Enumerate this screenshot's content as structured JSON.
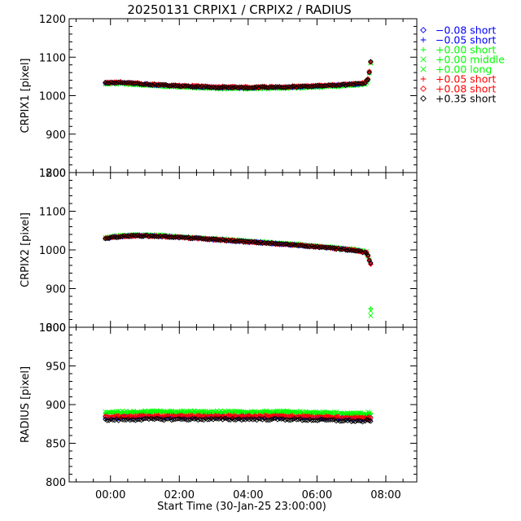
{
  "chart_data": {
    "type": "scatter",
    "title": "20250131 CRPIX1 / CRPIX2 / RADIUS",
    "xlabel": "Start Time (30-Jan-25 23:00:00)",
    "xlim_hours": [
      -1.2,
      8.9
    ],
    "x_tick_labels": [
      "00:00",
      "02:00",
      "04:00",
      "06:00",
      "08:00"
    ],
    "x_tick_hours": [
      0,
      2,
      4,
      6,
      8
    ],
    "panels": [
      {
        "ylabel": "CRPIX1 [pixel]",
        "ylim": [
          800,
          1200
        ],
        "yticks": [
          800,
          900,
          1000,
          1100,
          1200
        ],
        "trend": {
          "x": [
            -0.15,
            0.3,
            1.0,
            2.0,
            3.0,
            4.0,
            5.0,
            6.0,
            7.0,
            7.4,
            7.5,
            7.55
          ],
          "y": [
            1033,
            1034,
            1030,
            1025,
            1022,
            1021,
            1022,
            1025,
            1029,
            1033,
            1045,
            1088
          ]
        }
      },
      {
        "ylabel": "CRPIX2 [pixel]",
        "ylim": [
          800,
          1200
        ],
        "yticks": [
          800,
          900,
          1000,
          1100,
          1200
        ],
        "trend": {
          "x": [
            -0.15,
            0.3,
            0.8,
            1.5,
            2.5,
            3.5,
            4.5,
            5.5,
            6.5,
            7.2,
            7.45,
            7.55
          ],
          "y": [
            1030,
            1035,
            1037,
            1035,
            1030,
            1024,
            1018,
            1012,
            1004,
            998,
            992,
            965
          ]
        }
      },
      {
        "ylabel": "RADIUS [pixel]",
        "ylim": [
          800,
          1000
        ],
        "yticks": [
          800,
          850,
          900,
          950,
          1000
        ],
        "trend": {
          "x": [
            -0.15,
            1.0,
            3.0,
            5.0,
            7.0,
            7.55
          ],
          "y": [
            883,
            884,
            884,
            884,
            882,
            881
          ]
        }
      }
    ],
    "series": [
      {
        "name": "-0.08 short",
        "label": "−0.08 short",
        "color": "#0000ff",
        "symbol": "diamond",
        "offsets": [
          0,
          0,
          0
        ]
      },
      {
        "name": "-0.05 short",
        "label": "−0.05 short",
        "color": "#0000ff",
        "symbol": "plus",
        "offsets": [
          0,
          0,
          0
        ]
      },
      {
        "name": "+0.00 short",
        "label": "+0.00 short",
        "color": "#00ff00",
        "symbol": "plus",
        "offsets": [
          -2,
          1,
          5
        ]
      },
      {
        "name": "+0.00 middle",
        "label": "+0.00 middle",
        "color": "#00ff00",
        "symbol": "cross",
        "offsets": [
          -3,
          1,
          6
        ]
      },
      {
        "name": "+0.00 long",
        "label": "+0.00 long",
        "color": "#00ff00",
        "symbol": "cross",
        "offsets": [
          -2,
          2,
          7
        ]
      },
      {
        "name": "+0.05 short",
        "label": "+0.05 short",
        "color": "#ff0000",
        "symbol": "plus",
        "offsets": [
          1,
          0,
          2
        ]
      },
      {
        "name": "+0.08 short",
        "label": "+0.08 short",
        "color": "#ff0000",
        "symbol": "diamond",
        "offsets": [
          1,
          0,
          1
        ]
      },
      {
        "name": "+0.35 short",
        "label": "+0.35 short",
        "color": "#000000",
        "symbol": "diamond",
        "offsets": [
          0,
          0,
          -3
        ]
      }
    ],
    "legend_position": "right-top",
    "grid": false
  }
}
